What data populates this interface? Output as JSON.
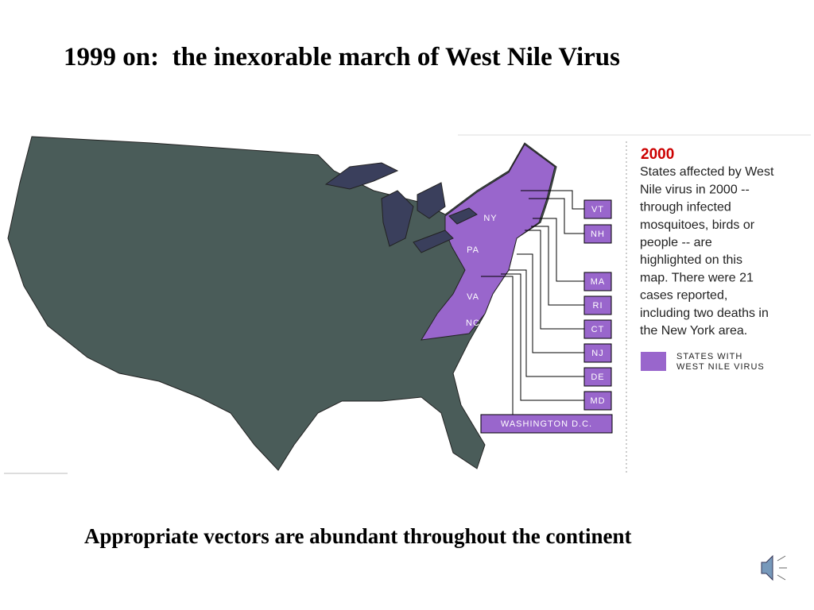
{
  "title": "1999 on:  the inexorable march of West Nile Virus",
  "map": {
    "state_labels": [
      "NY",
      "PA",
      "VA",
      "NC"
    ],
    "callouts": [
      "VT",
      "NH",
      "MA",
      "RI",
      "CT",
      "NJ",
      "DE",
      "MD",
      "WASHINGTON D.C."
    ],
    "year": "2000",
    "description": [
      "States affected by West",
      "Nile virus in 2000 --",
      "through infected",
      "mosquitoes, birds or",
      "people -- are",
      "highlighted on this",
      "map.  There were 21",
      "cases reported,",
      "including two deaths in",
      "the New York area."
    ],
    "legend": [
      "STATES  WITH",
      "WEST  NILE  VIRUS"
    ]
  },
  "caption": "Appropriate vectors are abundant throughout the continent"
}
